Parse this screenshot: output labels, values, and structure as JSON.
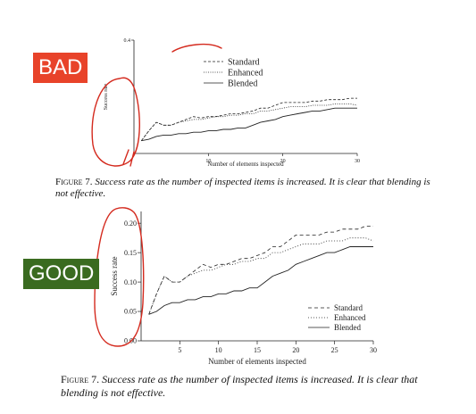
{
  "labels": {
    "bad": "BAD",
    "good": "GOOD"
  },
  "colors": {
    "bad": "#e8432a",
    "good": "#3a6b20",
    "annotation": "#d42a1e"
  },
  "bad_caption": {
    "label": "Figure 7.",
    "text": "Success rate as the number of inspected items is increased.  It is clear that blending is not effective."
  },
  "good_caption": {
    "label": "Figure 7.",
    "text": "Success rate as the number of inspected items is increased.  It is clear that blending is not effective."
  },
  "chart_data": [
    {
      "type": "line",
      "xlabel": "Number of elements inspected",
      "ylabel": "Success rate",
      "xlim": [
        0,
        30
      ],
      "ylim": [
        0,
        0.4
      ],
      "xticks": [
        10,
        20,
        30
      ],
      "yticks": [
        0.4
      ],
      "ytick_labels": [
        "0.4"
      ],
      "legend": "top-center",
      "series": [
        {
          "name": "Standard",
          "dash": "3,2",
          "points": [
            [
              1,
              0.045
            ],
            [
              2,
              0.08
            ],
            [
              3,
              0.11
            ],
            [
              4,
              0.1
            ],
            [
              5,
              0.1
            ],
            [
              6,
              0.11
            ],
            [
              7,
              0.12
            ],
            [
              8,
              0.13
            ],
            [
              9,
              0.125
            ],
            [
              10,
              0.13
            ],
            [
              11,
              0.13
            ],
            [
              12,
              0.135
            ],
            [
              13,
              0.14
            ],
            [
              14,
              0.14
            ],
            [
              15,
              0.145
            ],
            [
              16,
              0.15
            ],
            [
              17,
              0.16
            ],
            [
              18,
              0.16
            ],
            [
              19,
              0.17
            ],
            [
              20,
              0.18
            ],
            [
              21,
              0.18
            ],
            [
              22,
              0.18
            ],
            [
              23,
              0.18
            ],
            [
              24,
              0.185
            ],
            [
              25,
              0.185
            ],
            [
              26,
              0.19
            ],
            [
              27,
              0.19
            ],
            [
              28,
              0.19
            ],
            [
              29,
              0.195
            ],
            [
              30,
              0.195
            ]
          ]
        },
        {
          "name": "Enhanced",
          "dash": "1,1.5",
          "points": [
            [
              1,
              0.045
            ],
            [
              2,
              0.08
            ],
            [
              3,
              0.11
            ],
            [
              4,
              0.1
            ],
            [
              5,
              0.1
            ],
            [
              6,
              0.11
            ],
            [
              7,
              0.115
            ],
            [
              8,
              0.12
            ],
            [
              9,
              0.12
            ],
            [
              10,
              0.125
            ],
            [
              11,
              0.13
            ],
            [
              12,
              0.13
            ],
            [
              13,
              0.135
            ],
            [
              14,
              0.135
            ],
            [
              15,
              0.14
            ],
            [
              16,
              0.14
            ],
            [
              17,
              0.15
            ],
            [
              18,
              0.15
            ],
            [
              19,
              0.155
            ],
            [
              20,
              0.16
            ],
            [
              21,
              0.165
            ],
            [
              22,
              0.165
            ],
            [
              23,
              0.165
            ],
            [
              24,
              0.17
            ],
            [
              25,
              0.17
            ],
            [
              26,
              0.17
            ],
            [
              27,
              0.175
            ],
            [
              28,
              0.175
            ],
            [
              29,
              0.175
            ],
            [
              30,
              0.17
            ]
          ]
        },
        {
          "name": "Blended",
          "dash": "",
          "points": [
            [
              1,
              0.045
            ],
            [
              2,
              0.05
            ],
            [
              3,
              0.06
            ],
            [
              4,
              0.065
            ],
            [
              5,
              0.065
            ],
            [
              6,
              0.07
            ],
            [
              7,
              0.07
            ],
            [
              8,
              0.075
            ],
            [
              9,
              0.075
            ],
            [
              10,
              0.08
            ],
            [
              11,
              0.08
            ],
            [
              12,
              0.085
            ],
            [
              13,
              0.085
            ],
            [
              14,
              0.09
            ],
            [
              15,
              0.09
            ],
            [
              16,
              0.1
            ],
            [
              17,
              0.11
            ],
            [
              18,
              0.115
            ],
            [
              19,
              0.12
            ],
            [
              20,
              0.13
            ],
            [
              21,
              0.135
            ],
            [
              22,
              0.14
            ],
            [
              23,
              0.145
            ],
            [
              24,
              0.15
            ],
            [
              25,
              0.15
            ],
            [
              26,
              0.155
            ],
            [
              27,
              0.16
            ],
            [
              28,
              0.16
            ],
            [
              29,
              0.16
            ],
            [
              30,
              0.16
            ]
          ]
        }
      ]
    },
    {
      "type": "line",
      "xlabel": "Number of elements inspected",
      "ylabel": "Success rate",
      "xlim": [
        0,
        30
      ],
      "ylim": [
        0,
        0.22
      ],
      "xticks": [
        5,
        10,
        15,
        20,
        25,
        30
      ],
      "yticks": [
        0.0,
        0.05,
        0.1,
        0.15,
        0.2
      ],
      "ytick_labels": [
        "0.00",
        "0.05",
        "0.10",
        "0.15",
        "0.20"
      ],
      "legend": "bottom-right",
      "series": [
        {
          "name": "Standard",
          "dash": "4,3",
          "points": [
            [
              1,
              0.045
            ],
            [
              2,
              0.08
            ],
            [
              3,
              0.11
            ],
            [
              4,
              0.1
            ],
            [
              5,
              0.1
            ],
            [
              6,
              0.11
            ],
            [
              7,
              0.12
            ],
            [
              8,
              0.13
            ],
            [
              9,
              0.125
            ],
            [
              10,
              0.13
            ],
            [
              11,
              0.13
            ],
            [
              12,
              0.135
            ],
            [
              13,
              0.14
            ],
            [
              14,
              0.14
            ],
            [
              15,
              0.145
            ],
            [
              16,
              0.15
            ],
            [
              17,
              0.16
            ],
            [
              18,
              0.16
            ],
            [
              19,
              0.17
            ],
            [
              20,
              0.18
            ],
            [
              21,
              0.18
            ],
            [
              22,
              0.18
            ],
            [
              23,
              0.18
            ],
            [
              24,
              0.185
            ],
            [
              25,
              0.185
            ],
            [
              26,
              0.19
            ],
            [
              27,
              0.19
            ],
            [
              28,
              0.19
            ],
            [
              29,
              0.195
            ],
            [
              30,
              0.195
            ]
          ]
        },
        {
          "name": "Enhanced",
          "dash": "1,2",
          "points": [
            [
              1,
              0.045
            ],
            [
              2,
              0.08
            ],
            [
              3,
              0.11
            ],
            [
              4,
              0.1
            ],
            [
              5,
              0.1
            ],
            [
              6,
              0.11
            ],
            [
              7,
              0.115
            ],
            [
              8,
              0.12
            ],
            [
              9,
              0.12
            ],
            [
              10,
              0.125
            ],
            [
              11,
              0.13
            ],
            [
              12,
              0.13
            ],
            [
              13,
              0.135
            ],
            [
              14,
              0.135
            ],
            [
              15,
              0.14
            ],
            [
              16,
              0.14
            ],
            [
              17,
              0.15
            ],
            [
              18,
              0.15
            ],
            [
              19,
              0.155
            ],
            [
              20,
              0.16
            ],
            [
              21,
              0.165
            ],
            [
              22,
              0.165
            ],
            [
              23,
              0.165
            ],
            [
              24,
              0.17
            ],
            [
              25,
              0.17
            ],
            [
              26,
              0.17
            ],
            [
              27,
              0.175
            ],
            [
              28,
              0.175
            ],
            [
              29,
              0.175
            ],
            [
              30,
              0.17
            ]
          ]
        },
        {
          "name": "Blended",
          "dash": "",
          "points": [
            [
              1,
              0.045
            ],
            [
              2,
              0.05
            ],
            [
              3,
              0.06
            ],
            [
              4,
              0.065
            ],
            [
              5,
              0.065
            ],
            [
              6,
              0.07
            ],
            [
              7,
              0.07
            ],
            [
              8,
              0.075
            ],
            [
              9,
              0.075
            ],
            [
              10,
              0.08
            ],
            [
              11,
              0.08
            ],
            [
              12,
              0.085
            ],
            [
              13,
              0.085
            ],
            [
              14,
              0.09
            ],
            [
              15,
              0.09
            ],
            [
              16,
              0.1
            ],
            [
              17,
              0.11
            ],
            [
              18,
              0.115
            ],
            [
              19,
              0.12
            ],
            [
              20,
              0.13
            ],
            [
              21,
              0.135
            ],
            [
              22,
              0.14
            ],
            [
              23,
              0.145
            ],
            [
              24,
              0.15
            ],
            [
              25,
              0.15
            ],
            [
              26,
              0.155
            ],
            [
              27,
              0.16
            ],
            [
              28,
              0.16
            ],
            [
              29,
              0.16
            ],
            [
              30,
              0.16
            ]
          ]
        }
      ]
    }
  ]
}
